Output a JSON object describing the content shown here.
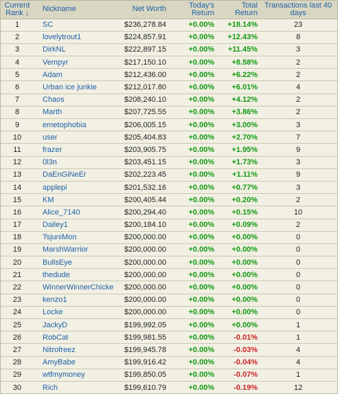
{
  "headers": {
    "rank": "Current Rank",
    "sort_arrow": "↓",
    "nickname": "Nickname",
    "net_worth": "Net Worth",
    "today": "Today's Return",
    "total": "Total Return",
    "transactions": "Transactions last 40 days"
  },
  "colors": {
    "positive": "#119911",
    "negative": "#cc2222",
    "link": "#1f5fa8",
    "background": "#f1f0e3"
  },
  "rows": [
    {
      "rank": "1",
      "nick": "SC",
      "net": "$236,278.84",
      "today": "+0.00%",
      "total": "+18.14%",
      "tx": "23"
    },
    {
      "rank": "2",
      "nick": "lovelytrout1",
      "net": "$224,857.91",
      "today": "+0.00%",
      "total": "+12.43%",
      "tx": "8"
    },
    {
      "rank": "3",
      "nick": "DirkNL",
      "net": "$222,897.15",
      "today": "+0.00%",
      "total": "+11.45%",
      "tx": "3"
    },
    {
      "rank": "4",
      "nick": "Vempyr",
      "net": "$217,150.10",
      "today": "+0.00%",
      "total": "+8.58%",
      "tx": "2"
    },
    {
      "rank": "5",
      "nick": "Adam",
      "net": "$212,436.00",
      "today": "+0.00%",
      "total": "+6.22%",
      "tx": "2"
    },
    {
      "rank": "6",
      "nick": "Urban ice junkie",
      "net": "$212,017.80",
      "today": "+0.00%",
      "total": "+6.01%",
      "tx": "4"
    },
    {
      "rank": "7",
      "nick": "Chaos",
      "net": "$208,240.10",
      "today": "+0.00%",
      "total": "+4.12%",
      "tx": "2"
    },
    {
      "rank": "8",
      "nick": "Marth",
      "net": "$207,725.55",
      "today": "+0.00%",
      "total": "+3.86%",
      "tx": "2"
    },
    {
      "rank": "9",
      "nick": "emetophobia",
      "net": "$206,005.15",
      "today": "+0.00%",
      "total": "+3.00%",
      "tx": "3"
    },
    {
      "rank": "10",
      "nick": "user",
      "net": "$205,404.83",
      "today": "+0.00%",
      "total": "+2.70%",
      "tx": "7"
    },
    {
      "rank": "11",
      "nick": "frazer",
      "net": "$203,905.75",
      "today": "+0.00%",
      "total": "+1.95%",
      "tx": "9"
    },
    {
      "rank": "12",
      "nick": "0l3n",
      "net": "$203,451.15",
      "today": "+0.00%",
      "total": "+1.73%",
      "tx": "3"
    },
    {
      "rank": "13",
      "nick": "DaEnGiNeEr",
      "net": "$202,223.45",
      "today": "+0.00%",
      "total": "+1.11%",
      "tx": "9"
    },
    {
      "rank": "14",
      "nick": "applepi",
      "net": "$201,532.16",
      "today": "+0.00%",
      "total": "+0.77%",
      "tx": "3"
    },
    {
      "rank": "15",
      "nick": "KM",
      "net": "$200,405.44",
      "today": "+0.00%",
      "total": "+0.20%",
      "tx": "2"
    },
    {
      "rank": "16",
      "nick": "Alice_7140",
      "net": "$200,294.40",
      "today": "+0.00%",
      "total": "+0.15%",
      "tx": "10"
    },
    {
      "rank": "17",
      "nick": "Dailey1",
      "net": "$200,184.10",
      "today": "+0.00%",
      "total": "+0.09%",
      "tx": "2"
    },
    {
      "rank": "18",
      "nick": "TsjuniMon",
      "net": "$200,000.00",
      "today": "+0.00%",
      "total": "+0.00%",
      "tx": "0"
    },
    {
      "rank": "19",
      "nick": "MarshWarrior",
      "net": "$200,000.00",
      "today": "+0.00%",
      "total": "+0.00%",
      "tx": "0"
    },
    {
      "rank": "20",
      "nick": "BullsEye",
      "net": "$200,000.00",
      "today": "+0.00%",
      "total": "+0.00%",
      "tx": "0"
    },
    {
      "rank": "21",
      "nick": "thedude",
      "net": "$200,000.00",
      "today": "+0.00%",
      "total": "+0.00%",
      "tx": "0"
    },
    {
      "rank": "22",
      "nick": "WinnerWinnerChickenD",
      "net": "$200,000.00",
      "today": "+0.00%",
      "total": "+0.00%",
      "tx": "0"
    },
    {
      "rank": "23",
      "nick": "kenzo1",
      "net": "$200,000.00",
      "today": "+0.00%",
      "total": "+0.00%",
      "tx": "0"
    },
    {
      "rank": "24",
      "nick": "Locke",
      "net": "$200,000.00",
      "today": "+0.00%",
      "total": "+0.00%",
      "tx": "0"
    },
    {
      "rank": "25",
      "nick": "JackyD",
      "net": "$199,992.05",
      "today": "+0.00%",
      "total": "+0.00%",
      "tx": "1"
    },
    {
      "rank": "26",
      "nick": "RobCat",
      "net": "$199,981.55",
      "today": "+0.00%",
      "total": "-0.01%",
      "tx": "1"
    },
    {
      "rank": "27",
      "nick": "Nitrofreez",
      "net": "$199,945.78",
      "today": "+0.00%",
      "total": "-0.03%",
      "tx": "4"
    },
    {
      "rank": "28",
      "nick": "AmyBabe",
      "net": "$199,916.42",
      "today": "+0.00%",
      "total": "-0.04%",
      "tx": "4"
    },
    {
      "rank": "29",
      "nick": "wtfmymoney",
      "net": "$199,850.05",
      "today": "+0.00%",
      "total": "-0.07%",
      "tx": "1"
    },
    {
      "rank": "30",
      "nick": "Rich",
      "net": "$199,610.79",
      "today": "+0.00%",
      "total": "-0.19%",
      "tx": "12"
    }
  ]
}
